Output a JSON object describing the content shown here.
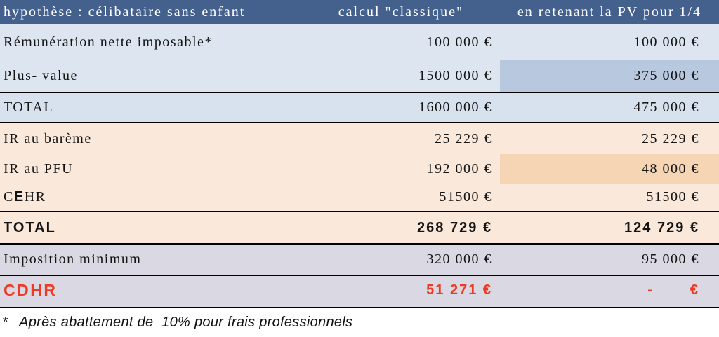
{
  "table": {
    "header": {
      "hypothesis": "hypothèse : célibataire sans enfant",
      "classic": "calcul \"classique\"",
      "pv_quarter": "en retenant la PV pour 1/4"
    },
    "rows": [
      {
        "name": "remuneration",
        "section": "blue",
        "label_parts": [
          {
            "t": "Rémunération nette imposable*"
          }
        ],
        "classic": "100 000 €",
        "pv": "100 000 €"
      },
      {
        "name": "plus-value",
        "section": "blue",
        "pv_highlight": true,
        "label_parts": [
          {
            "t": "Plus- value"
          }
        ],
        "classic": "1500 000 €",
        "pv": "375 000 €"
      },
      {
        "name": "total-revenus",
        "section": "blue-total",
        "border_top": true,
        "border_bottom": true,
        "label_parts": [
          {
            "t": "TOTAL"
          }
        ],
        "classic": "1600 000 €",
        "pv": "475 000 €"
      },
      {
        "name": "ir-bareme",
        "section": "orange",
        "label_parts": [
          {
            "t": "IR au barème"
          }
        ],
        "classic": "25 229 €",
        "pv": "25 229 €"
      },
      {
        "name": "ir-pfu",
        "section": "orange",
        "pv_highlight": true,
        "label_parts": [
          {
            "t": "IR au PFU"
          }
        ],
        "classic": "192 000 €",
        "pv": "48 000 €"
      },
      {
        "name": "cehr",
        "section": "orange",
        "label_parts": [
          {
            "t": "C"
          },
          {
            "t": "E",
            "style": "bold-sans"
          },
          {
            "t": "HR"
          }
        ],
        "classic": "51500 €",
        "pv": "51500 €"
      },
      {
        "name": "total-impots",
        "section": "orange",
        "style": "bold",
        "border_top": true,
        "border_bottom": true,
        "label_parts": [
          {
            "t": "TOTAL"
          }
        ],
        "classic": "268 729 €",
        "pv": "124 729 €"
      },
      {
        "name": "imposition-minimum",
        "section": "lavender",
        "border_bottom": true,
        "label_parts": [
          {
            "t": "Imposition minimum"
          }
        ],
        "classic": "320 000 €",
        "pv": "95 000 €"
      },
      {
        "name": "cdhr",
        "section": "lavender",
        "style": "bold-red",
        "border_bottom": "double",
        "label_parts": [
          {
            "t": "CDHR"
          }
        ],
        "classic": "51 271 €",
        "pv_dash": "-",
        "pv_euro": "€"
      }
    ],
    "footnote_marker": "*",
    "footnote": "Après abattement de  10% pour frais professionnels"
  },
  "colors": {
    "header_bg": "#44618e",
    "blue_row": "#dde6f0",
    "blue_highlight": "#b8c8de",
    "orange_row": "#fae8da",
    "orange_highlight": "#f5d5b3",
    "lavender_row": "#dad8e2",
    "accent_red": "#ee3a24"
  }
}
